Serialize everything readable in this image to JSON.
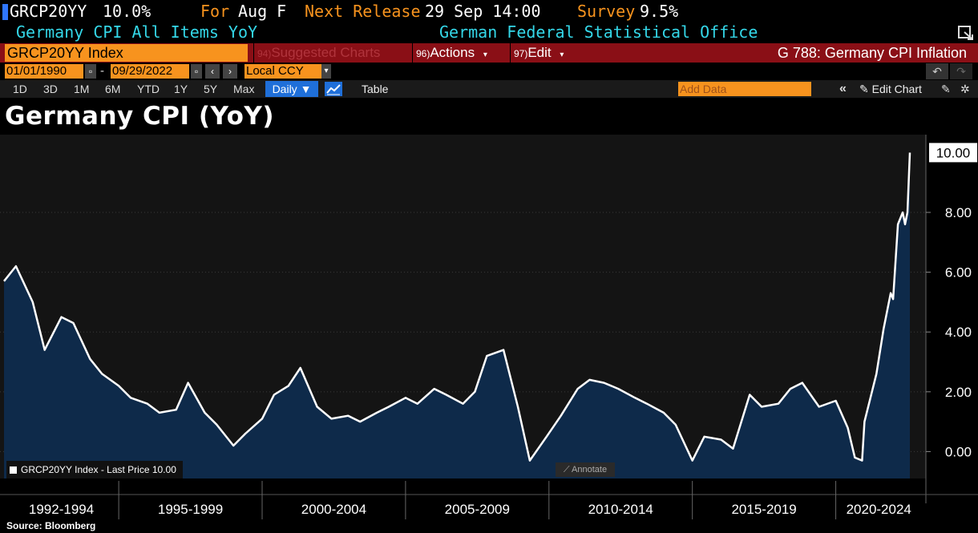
{
  "header": {
    "ticker": "GRCP20YY",
    "last": "10.0%",
    "for_label": "For",
    "for_value": "Aug F",
    "next_label": "Next Release",
    "next_value": "29 Sep 14:00",
    "survey_label": "Survey",
    "survey_value": "9.5%",
    "description": "Germany CPI All Items YoY",
    "source_org": "German Federal Statistical Office"
  },
  "toolbar": {
    "security": "GRCP20YY Index",
    "suggested": "Suggested Charts",
    "suggested_num": "94)",
    "actions": "Actions",
    "actions_num": "96)",
    "edit": "Edit",
    "edit_num": "97)",
    "chart_id": "G 788: Germany CPI Inflation",
    "start_date": "01/01/1990",
    "end_date": "09/29/2022",
    "date_sep": "-",
    "currency": "Local CCY",
    "periods": [
      "1D",
      "3D",
      "1M",
      "6M",
      "YTD",
      "1Y",
      "5Y",
      "Max"
    ],
    "frequency": "Daily ▼",
    "table": "Table",
    "add_data": "Add Data",
    "edit_chart": "Edit Chart"
  },
  "colors": {
    "accent": "#f7931e",
    "bar_red": "#8a0f16",
    "area": "#0e2a4a",
    "line": "#ffffff"
  },
  "chart_data": {
    "type": "area",
    "title": "Germany CPI (YoY)",
    "ylim": [
      -0.9,
      10.6
    ],
    "yticks": [
      "0.00",
      "2.00",
      "4.00",
      "6.00",
      "8.00"
    ],
    "last_label": "10.00",
    "legend": "GRCP20YY Index - Last Price 10.00",
    "annotate": "Annotate",
    "xlabels": [
      "1992-1994",
      "1995-1999",
      "2000-2004",
      "2005-2009",
      "2010-2014",
      "2015-2019",
      "2020-2024"
    ],
    "x_start": "1991-01",
    "x_end": "2022-08",
    "x": [
      "1991-01",
      "1991-06",
      "1992-01",
      "1992-06",
      "1993-01",
      "1993-06",
      "1994-01",
      "1994-06",
      "1995-01",
      "1995-06",
      "1996-01",
      "1996-06",
      "1997-01",
      "1997-06",
      "1998-01",
      "1998-06",
      "1999-01",
      "1999-06",
      "2000-01",
      "2000-06",
      "2000-12",
      "2001-05",
      "2001-12",
      "2002-06",
      "2003-01",
      "2003-06",
      "2004-01",
      "2004-06",
      "2005-01",
      "2005-06",
      "2006-01",
      "2006-06",
      "2007-01",
      "2007-06",
      "2007-11",
      "2008-06",
      "2008-12",
      "2009-05",
      "2009-12",
      "2010-06",
      "2011-01",
      "2011-06",
      "2011-12",
      "2012-06",
      "2013-01",
      "2013-06",
      "2014-01",
      "2014-06",
      "2015-01",
      "2015-06",
      "2016-01",
      "2016-06",
      "2017-01",
      "2017-06",
      "2018-01",
      "2018-06",
      "2018-11",
      "2019-06",
      "2020-01",
      "2020-06",
      "2020-09",
      "2020-12",
      "2021-01",
      "2021-06",
      "2021-09",
      "2021-12",
      "2022-01",
      "2022-03",
      "2022-05",
      "2022-06",
      "2022-07",
      "2022-08"
    ],
    "values": [
      5.7,
      6.2,
      5.0,
      3.4,
      4.5,
      4.3,
      3.1,
      2.6,
      2.2,
      1.8,
      1.6,
      1.3,
      1.4,
      2.3,
      1.3,
      0.9,
      0.2,
      0.6,
      1.1,
      1.9,
      2.2,
      2.8,
      1.5,
      1.1,
      1.2,
      1.0,
      1.3,
      1.5,
      1.8,
      1.6,
      2.1,
      1.9,
      1.6,
      2.0,
      3.2,
      3.4,
      1.5,
      -0.3,
      0.5,
      1.2,
      2.1,
      2.4,
      2.3,
      2.1,
      1.8,
      1.6,
      1.3,
      0.9,
      -0.3,
      0.5,
      0.4,
      0.1,
      1.9,
      1.5,
      1.6,
      2.1,
      2.3,
      1.5,
      1.7,
      0.8,
      -0.2,
      -0.3,
      1.0,
      2.6,
      4.1,
      5.3,
      5.1,
      7.6,
      8.0,
      7.6,
      8.0,
      10.0
    ]
  },
  "footer": {
    "source": "Source: Bloomberg"
  }
}
